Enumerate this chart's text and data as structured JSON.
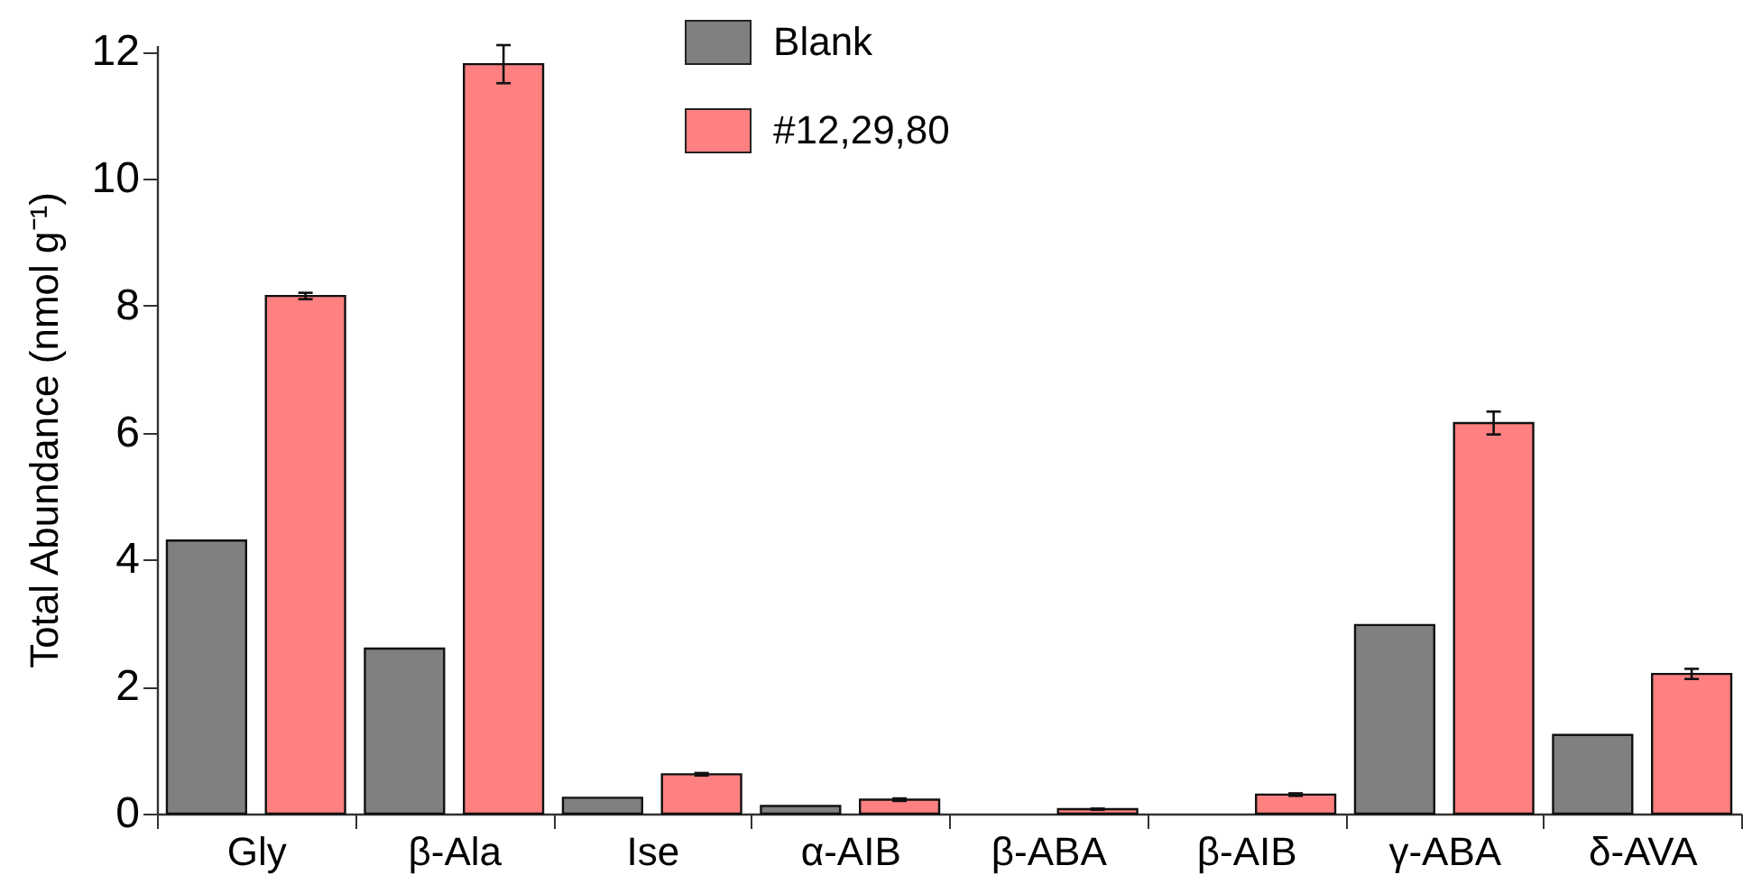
{
  "chart_data": {
    "type": "bar",
    "ylabel": "Total Abundance (nmol g⁻¹)",
    "categories": [
      "Gly",
      "β-Ala",
      "Ise",
      "α-AIB",
      "β-ABA",
      "β-AIB",
      "γ-ABA",
      "δ-AVA"
    ],
    "series": [
      {
        "name": "Blank",
        "color": "#808080",
        "values": [
          4.3,
          2.6,
          0.25,
          0.12,
          null,
          null,
          2.97,
          1.24
        ]
      },
      {
        "name": "#12,29,80",
        "color": "#ff8080",
        "values": [
          8.15,
          11.8,
          0.62,
          0.22,
          0.07,
          0.3,
          6.15,
          2.2
        ],
        "errors": [
          0.05,
          0.3,
          0.02,
          0.02,
          0.01,
          0.02,
          0.18,
          0.08
        ]
      }
    ],
    "ylim": [
      0,
      12.1
    ],
    "yticks": [
      0,
      2,
      4,
      6,
      8,
      10,
      12
    ],
    "grid": false,
    "legend": "top"
  }
}
